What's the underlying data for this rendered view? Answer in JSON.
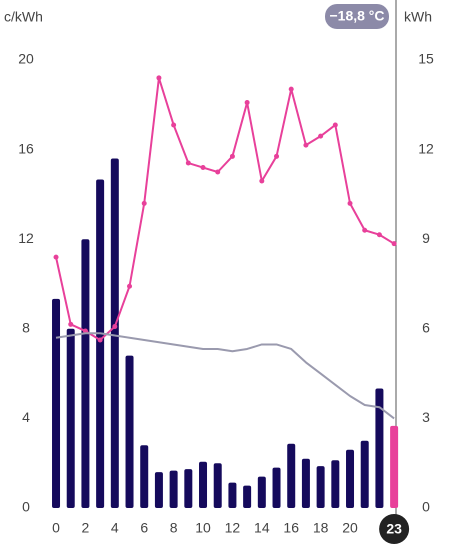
{
  "chart_data": {
    "type": "bar",
    "y_label": "c/kWh",
    "y2_label": "kWh",
    "badge": "−18,8 °C",
    "x": [
      0,
      1,
      2,
      3,
      4,
      5,
      6,
      7,
      8,
      9,
      10,
      11,
      12,
      13,
      14,
      15,
      16,
      17,
      18,
      19,
      20,
      21,
      22,
      23
    ],
    "xlim": [
      -0.75,
      23.4
    ],
    "xticks": [
      0,
      2,
      4,
      6,
      8,
      10,
      12,
      14,
      16,
      18,
      20
    ],
    "ylim": [
      0,
      20
    ],
    "yticks": [
      0,
      4,
      8,
      12,
      16,
      20
    ],
    "y2lim": [
      0,
      15
    ],
    "y2ticks": [
      0,
      3,
      6,
      9,
      12,
      15
    ],
    "selected_index": 23,
    "highlight_color": "#e8409a",
    "series": [
      {
        "type": "bar",
        "axis": "y2",
        "color": "#150a5c",
        "values": [
          7.0,
          6.0,
          9.0,
          11.0,
          11.7,
          5.1,
          2.1,
          1.2,
          1.25,
          1.3,
          1.55,
          1.5,
          0.85,
          0.75,
          1.05,
          1.35,
          2.15,
          1.65,
          1.4,
          1.6,
          1.95,
          2.25,
          4.0,
          2.75
        ]
      },
      {
        "type": "line",
        "axis": "y",
        "color": "#e8409a",
        "markers": true,
        "values": [
          11.2,
          8.2,
          7.9,
          7.5,
          8.1,
          9.9,
          13.6,
          19.2,
          17.1,
          15.4,
          15.2,
          15.0,
          15.7,
          18.1,
          14.6,
          15.7,
          18.7,
          16.2,
          16.6,
          17.1,
          13.6,
          12.4,
          12.2,
          11.8
        ]
      },
      {
        "type": "line",
        "axis": "y",
        "color": "#9a9aae",
        "markers": false,
        "values": [
          7.6,
          7.7,
          7.8,
          7.8,
          7.7,
          7.6,
          7.5,
          7.4,
          7.3,
          7.2,
          7.1,
          7.1,
          7.0,
          7.1,
          7.3,
          7.3,
          7.1,
          6.5,
          6.0,
          5.5,
          5.0,
          4.6,
          4.5,
          4.0
        ]
      }
    ]
  }
}
